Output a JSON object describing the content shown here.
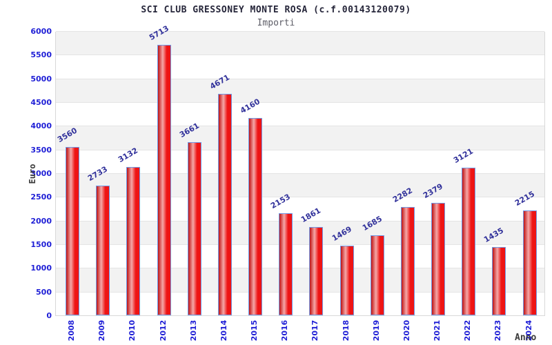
{
  "header": {
    "title": "SCI CLUB GRESSONEY MONTE ROSA (c.f.00143120079)",
    "subtitle": "Importi"
  },
  "chart_data": {
    "type": "bar",
    "title": "SCI CLUB GRESSONEY MONTE ROSA (c.f.00143120079)",
    "subtitle": "Importi",
    "xlabel": "Anno",
    "ylabel": "Euro",
    "categories": [
      "2008",
      "2009",
      "2010",
      "2012",
      "2013",
      "2014",
      "2015",
      "2016",
      "2017",
      "2018",
      "2019",
      "2020",
      "2021",
      "2022",
      "2023",
      "2024"
    ],
    "values": [
      3560,
      2733,
      3132,
      5713,
      3661,
      4671,
      4160,
      2153,
      1861,
      1469,
      1685,
      2282,
      2379,
      3121,
      1435,
      2215
    ],
    "ylim": [
      0,
      6000
    ],
    "ytick_step": 500,
    "grid": "alternating horizontal bands every 500",
    "legend": "none",
    "bar_value_labels_rotated_deg": -30,
    "x_tick_labels_rotated_deg": -90,
    "colors": {
      "bar_fill": "#ee1414",
      "bar_highlight": "#f5a8a8",
      "bar_shadow": "#c01414",
      "bar_border": "#6f9ae8",
      "axis_tick_label": "#1f1fd6",
      "value_label": "#32329b",
      "band_gray": "#f2f2f2",
      "band_white": "#ffffff",
      "gridline": "#e4e4e4",
      "plot_border": "#d8d8d8",
      "title": "#26263a",
      "subtitle": "#5c5c66",
      "axis_title": "#3a3a3a"
    }
  }
}
